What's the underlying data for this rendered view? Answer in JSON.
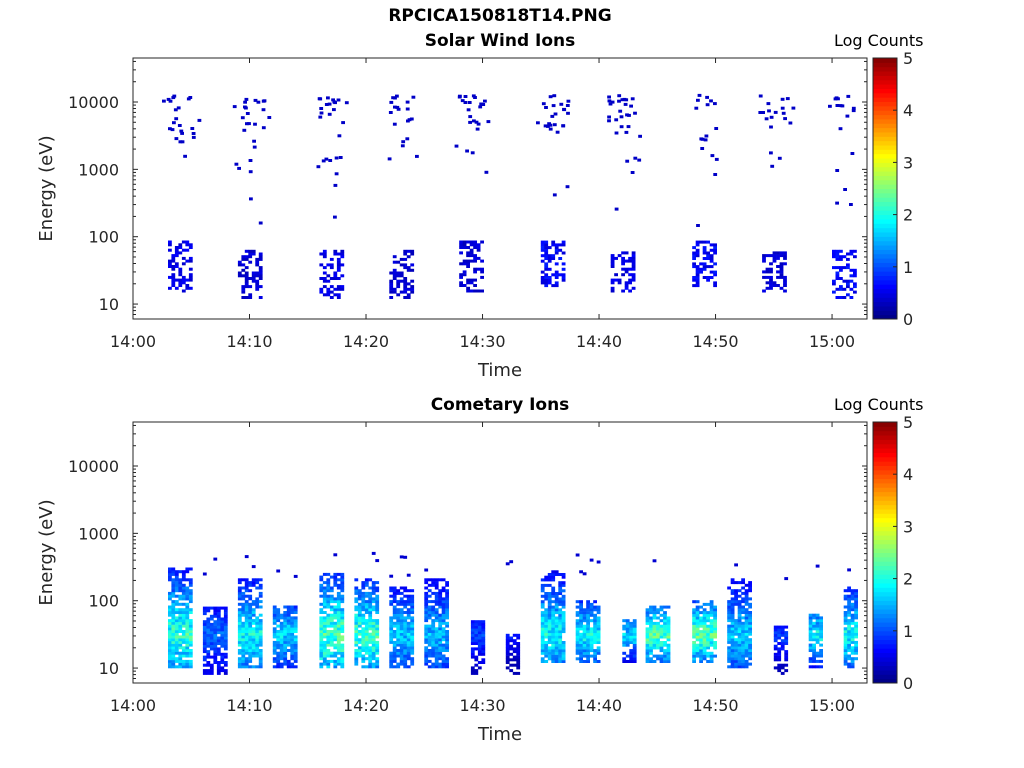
{
  "figure": {
    "title": "RPCICA150818T14.PNG"
  },
  "colors": {
    "colormap": "jet",
    "axis": "#262626",
    "background": "#ffffff"
  },
  "chart_data": [
    {
      "type": "heatmap",
      "title": "Solar Wind Ions",
      "xlabel": "Time",
      "ylabel": "Energy (eV)",
      "yscale": "log",
      "ylim": [
        6,
        45000
      ],
      "xlim": [
        "14:00",
        "15:03"
      ],
      "x_ticks": [
        "14:00",
        "14:10",
        "14:20",
        "14:30",
        "14:40",
        "14:50",
        "15:00"
      ],
      "y_ticks": [
        "10",
        "100",
        "1000",
        "10000"
      ],
      "colorbar": {
        "label": "Log Counts",
        "range": [
          0,
          5
        ],
        "ticks": [
          "0",
          "1",
          "2",
          "3",
          "4",
          "5"
        ]
      },
      "sweeps": [
        {
          "start": "14:03",
          "end": "14:05",
          "core_ev": [
            15,
            80
          ],
          "level": 0.5
        },
        {
          "start": "14:09",
          "end": "14:11",
          "core_ev": [
            12,
            60
          ],
          "level": 0.4
        },
        {
          "start": "14:16",
          "end": "14:18",
          "core_ev": [
            12,
            60
          ],
          "level": 0.5
        },
        {
          "start": "14:22",
          "end": "14:24",
          "core_ev": [
            12,
            60
          ],
          "level": 0.4
        },
        {
          "start": "14:28",
          "end": "14:30",
          "core_ev": [
            15,
            80
          ],
          "level": 0.4
        },
        {
          "start": "14:35",
          "end": "14:37",
          "core_ev": [
            18,
            80
          ],
          "level": 0.6
        },
        {
          "start": "14:41",
          "end": "14:43",
          "core_ev": [
            15,
            60
          ],
          "level": 0.5
        },
        {
          "start": "14:48",
          "end": "14:50",
          "core_ev": [
            18,
            80
          ],
          "level": 0.6
        },
        {
          "start": "14:54",
          "end": "14:56",
          "core_ev": [
            15,
            60
          ],
          "level": 0.4
        },
        {
          "start": "15:00",
          "end": "15:02",
          "core_ev": [
            12,
            60
          ],
          "level": 0.6
        }
      ]
    },
    {
      "type": "heatmap",
      "title": "Cometary Ions",
      "xlabel": "Time",
      "ylabel": "Energy (eV)",
      "yscale": "log",
      "ylim": [
        6,
        45000
      ],
      "xlim": [
        "14:00",
        "15:03"
      ],
      "x_ticks": [
        "14:00",
        "14:10",
        "14:20",
        "14:30",
        "14:40",
        "14:50",
        "15:00"
      ],
      "y_ticks": [
        "10",
        "100",
        "1000",
        "10000"
      ],
      "colorbar": {
        "label": "Log Counts",
        "range": [
          0,
          5
        ],
        "ticks": [
          "0",
          "1",
          "2",
          "3",
          "4",
          "5"
        ]
      },
      "bursts": [
        {
          "start": "14:03",
          "end": "14:05",
          "ev": [
            10,
            300
          ],
          "peak": 2.2
        },
        {
          "start": "14:06",
          "end": "14:08",
          "ev": [
            8,
            80
          ],
          "peak": 1.2
        },
        {
          "start": "14:09",
          "end": "14:11",
          "ev": [
            10,
            200
          ],
          "peak": 2.0
        },
        {
          "start": "14:12",
          "end": "14:14",
          "ev": [
            10,
            80
          ],
          "peak": 1.8
        },
        {
          "start": "14:16",
          "end": "14:18",
          "ev": [
            10,
            250
          ],
          "peak": 2.4
        },
        {
          "start": "14:19",
          "end": "14:21",
          "ev": [
            10,
            200
          ],
          "peak": 2.3
        },
        {
          "start": "14:22",
          "end": "14:24",
          "ev": [
            10,
            150
          ],
          "peak": 1.7
        },
        {
          "start": "14:25",
          "end": "14:27",
          "ev": [
            10,
            200
          ],
          "peak": 1.6
        },
        {
          "start": "14:29",
          "end": "14:30",
          "ev": [
            8,
            50
          ],
          "peak": 1.0
        },
        {
          "start": "14:32",
          "end": "14:33",
          "ev": [
            8,
            30
          ],
          "peak": 0.8
        },
        {
          "start": "14:35",
          "end": "14:37",
          "ev": [
            12,
            280
          ],
          "peak": 2.0
        },
        {
          "start": "14:38",
          "end": "14:40",
          "ev": [
            12,
            100
          ],
          "peak": 2.0
        },
        {
          "start": "14:42",
          "end": "14:43",
          "ev": [
            12,
            50
          ],
          "peak": 1.8
        },
        {
          "start": "14:44",
          "end": "14:46",
          "ev": [
            12,
            80
          ],
          "peak": 2.4
        },
        {
          "start": "14:48",
          "end": "14:50",
          "ev": [
            12,
            100
          ],
          "peak": 2.4
        },
        {
          "start": "14:51",
          "end": "14:53",
          "ev": [
            10,
            200
          ],
          "peak": 1.7
        },
        {
          "start": "14:55",
          "end": "14:56",
          "ev": [
            8,
            40
          ],
          "peak": 1.0
        },
        {
          "start": "14:58",
          "end": "14:59",
          "ev": [
            10,
            60
          ],
          "peak": 2.0
        },
        {
          "start": "15:01",
          "end": "15:02",
          "ev": [
            10,
            150
          ],
          "peak": 2.0
        }
      ]
    }
  ]
}
